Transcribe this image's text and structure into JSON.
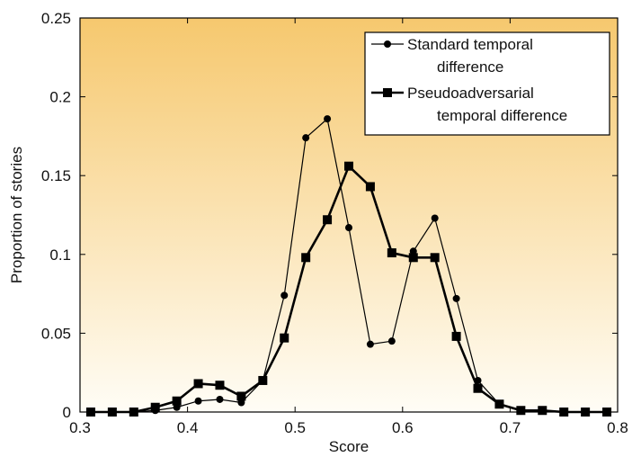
{
  "chart_data": {
    "type": "line",
    "title": "",
    "xlabel": "Score",
    "ylabel": "Proportion of stories",
    "xlim": [
      0.3,
      0.8
    ],
    "ylim": [
      0,
      0.25
    ],
    "x_ticks": [
      0.3,
      0.4,
      0.5,
      0.6,
      0.7,
      0.8
    ],
    "y_ticks": [
      0,
      0.05,
      0.1,
      0.15,
      0.2,
      0.25
    ],
    "x_tick_labels": [
      "0.3",
      "0.4",
      "0.5",
      "0.6",
      "0.7",
      "0.8"
    ],
    "y_tick_labels": [
      "0",
      "0.05",
      "0.1",
      "0.15",
      "0.2",
      "0.25"
    ],
    "grid": false,
    "legend_position": "top-right",
    "background": {
      "top_color": "#f6c86e",
      "bottom_color": "#fffdf6"
    },
    "x": [
      0.31,
      0.33,
      0.35,
      0.37,
      0.39,
      0.41,
      0.43,
      0.45,
      0.47,
      0.49,
      0.51,
      0.53,
      0.55,
      0.57,
      0.59,
      0.61,
      0.63,
      0.65,
      0.67,
      0.69,
      0.71,
      0.73,
      0.75,
      0.77,
      0.79
    ],
    "series": [
      {
        "name": "Standard temporal difference",
        "legend_lines": [
          "Standard temporal",
          "difference"
        ],
        "marker": "circle",
        "line_width": "thin",
        "color": "#000000",
        "values": [
          0,
          0,
          0,
          0.001,
          0.003,
          0.007,
          0.008,
          0.006,
          0.02,
          0.074,
          0.174,
          0.186,
          0.117,
          0.043,
          0.045,
          0.102,
          0.123,
          0.072,
          0.02,
          0.005,
          0.001,
          0.001,
          0,
          0,
          0
        ]
      },
      {
        "name": "Pseudoadversarial temporal difference",
        "legend_lines": [
          "Pseudoadversarial",
          "temporal difference"
        ],
        "marker": "square",
        "line_width": "thick",
        "color": "#000000",
        "values": [
          0,
          0,
          0,
          0.003,
          0.007,
          0.018,
          0.017,
          0.01,
          0.02,
          0.047,
          0.098,
          0.122,
          0.156,
          0.143,
          0.101,
          0.098,
          0.098,
          0.048,
          0.015,
          0.005,
          0.001,
          0.001,
          0,
          0,
          0
        ]
      }
    ]
  }
}
